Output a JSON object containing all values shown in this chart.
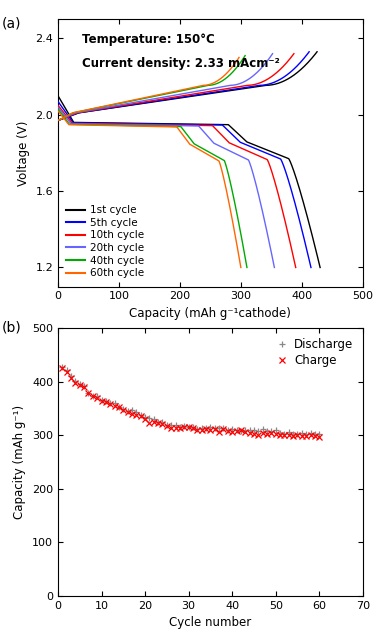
{
  "panel_a": {
    "title_text1": "Temperature: 150°C",
    "title_text2": "Current density: 2.33 mAcm⁻²",
    "xlabel": "Capacity (mAh g⁻¹cathode)",
    "ylabel": "Voltage (V)",
    "xlim": [
      0,
      500
    ],
    "ylim": [
      1.1,
      2.5
    ],
    "yticks": [
      1.2,
      1.6,
      2.0,
      2.4
    ],
    "xticks": [
      0,
      100,
      200,
      300,
      400,
      500
    ],
    "cycle_data": [
      {
        "label": "1st cycle",
        "color": "#000000",
        "d_cap": 430,
        "c_cap": 425,
        "d_sv": 2.1,
        "d_plateau": 1.96,
        "c_ev": 2.33
      },
      {
        "label": "5th cycle",
        "color": "#0000ff",
        "d_cap": 415,
        "c_cap": 412,
        "d_sv": 2.07,
        "d_plateau": 1.958,
        "c_ev": 2.33
      },
      {
        "label": "10th cycle",
        "color": "#ff0000",
        "d_cap": 390,
        "c_cap": 387,
        "d_sv": 2.05,
        "d_plateau": 1.955,
        "c_ev": 2.32
      },
      {
        "label": "20th cycle",
        "color": "#6666ff",
        "d_cap": 355,
        "c_cap": 352,
        "d_sv": 2.04,
        "d_plateau": 1.953,
        "c_ev": 2.32
      },
      {
        "label": "40th cycle",
        "color": "#00aa00",
        "d_cap": 310,
        "c_cap": 307,
        "d_sv": 2.03,
        "d_plateau": 1.95,
        "c_ev": 2.31
      },
      {
        "label": "60th cycle",
        "color": "#ff6600",
        "d_cap": 300,
        "c_cap": 297,
        "d_sv": 2.02,
        "d_plateau": 1.948,
        "c_ev": 2.3
      }
    ]
  },
  "panel_b": {
    "xlabel": "Cycle number",
    "ylabel": "Capacity (mAh g⁻¹)",
    "xlim": [
      0,
      70
    ],
    "ylim": [
      0,
      500
    ],
    "yticks": [
      0,
      100,
      200,
      300,
      400,
      500
    ],
    "xticks": [
      0,
      10,
      20,
      30,
      40,
      50,
      60,
      70
    ],
    "discharge_color": "#888888",
    "charge_color": "#ff0000"
  }
}
